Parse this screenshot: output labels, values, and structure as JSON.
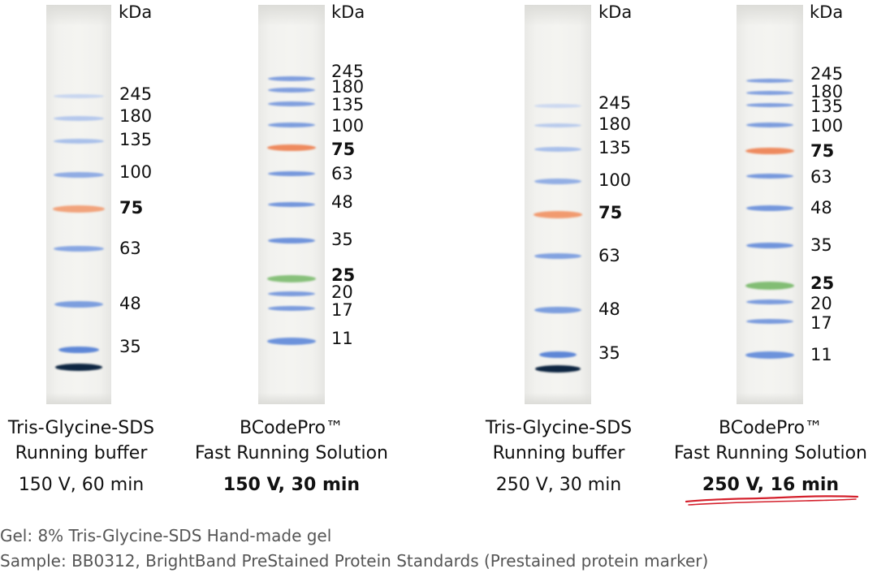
{
  "panels": [
    {
      "unit": "kDa",
      "ladder": [
        "245",
        "180",
        "135",
        "100",
        "75",
        "63",
        "48",
        "35"
      ],
      "bold_marks": [
        "75"
      ],
      "caption_line1": "Tris-Glycine-SDS",
      "caption_line2": "Running buffer",
      "condition": "150 V, 60 min",
      "condition_bold": false
    },
    {
      "unit": "kDa",
      "ladder": [
        "245",
        "180",
        "135",
        "100",
        "75",
        "63",
        "48",
        "35",
        "25",
        "20",
        "17",
        "11"
      ],
      "bold_marks": [
        "75",
        "25"
      ],
      "caption_line1": "BCodePro™",
      "caption_line2": "Fast Running Solution",
      "condition": "150 V, 30 min",
      "condition_bold": true
    },
    {
      "unit": "kDa",
      "ladder": [
        "245",
        "180",
        "135",
        "100",
        "75",
        "63",
        "48",
        "35"
      ],
      "bold_marks": [
        "75"
      ],
      "caption_line1": "Tris-Glycine-SDS",
      "caption_line2": "Running buffer",
      "condition": "250 V, 30 min",
      "condition_bold": false
    },
    {
      "unit": "kDa",
      "ladder": [
        "245",
        "180",
        "135",
        "100",
        "75",
        "63",
        "48",
        "35",
        "25",
        "20",
        "17",
        "11"
      ],
      "bold_marks": [
        "75",
        "25"
      ],
      "caption_line1": "BCodePro™",
      "caption_line2": "Fast Running Solution",
      "condition": "250 V, 16 min",
      "condition_bold": true,
      "condition_underlined": true
    }
  ],
  "notes": {
    "gel": "Gel: 8% Tris-Glycine-SDS Hand-made gel",
    "sample": "Sample: BB0312, BrightBand PreStained Protein Standards (Prestained protein marker)"
  },
  "colors": {
    "band_blue": "#6f95dc",
    "band_orange": "#f0956a",
    "band_green": "#7fbf72",
    "band_dark": "#0a1f3a",
    "underline_red": "#d4202c",
    "note_gray": "#555555"
  }
}
